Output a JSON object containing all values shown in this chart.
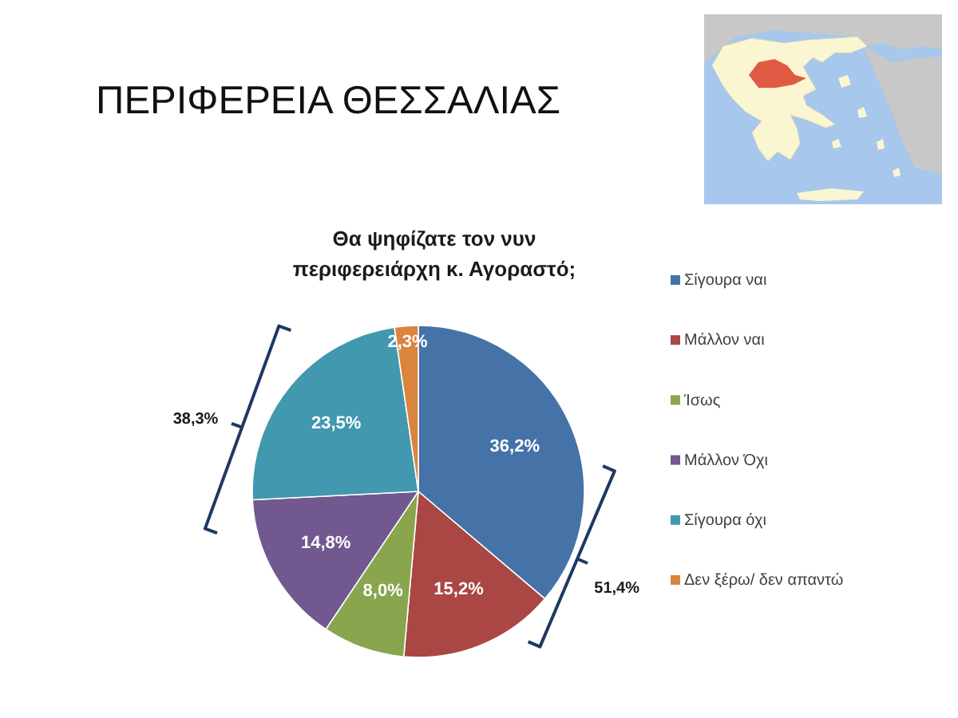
{
  "chart_data": {
    "type": "pie",
    "title": "ΠΕΡΙΦΕΡΕΙΑ ΘΕΣΣΑΛΙΑΣ",
    "subtitle": "Θα ψηφίζατε τον νυν περιφερειάρχη κ. Αγοραστό;",
    "categories": [
      "Σίγουρα ναι",
      "Μάλλον ναι",
      "Ίσως",
      "Μάλλον Όχι",
      "Σίγουρα όχι",
      "Δεν ξέρω/ δεν απαντώ"
    ],
    "values": [
      36.2,
      15.2,
      8.0,
      14.8,
      23.5,
      2.3
    ],
    "colors": [
      "#4572a7",
      "#aa4643",
      "#89a54e",
      "#71588f",
      "#4198af",
      "#db843d"
    ],
    "value_labels": [
      "36,2%",
      "15,2%",
      "8,0%",
      "14,8%",
      "23,5%",
      "2,3%"
    ],
    "legend": "right",
    "annotations": [
      "38,3%",
      "51,4%"
    ]
  }
}
